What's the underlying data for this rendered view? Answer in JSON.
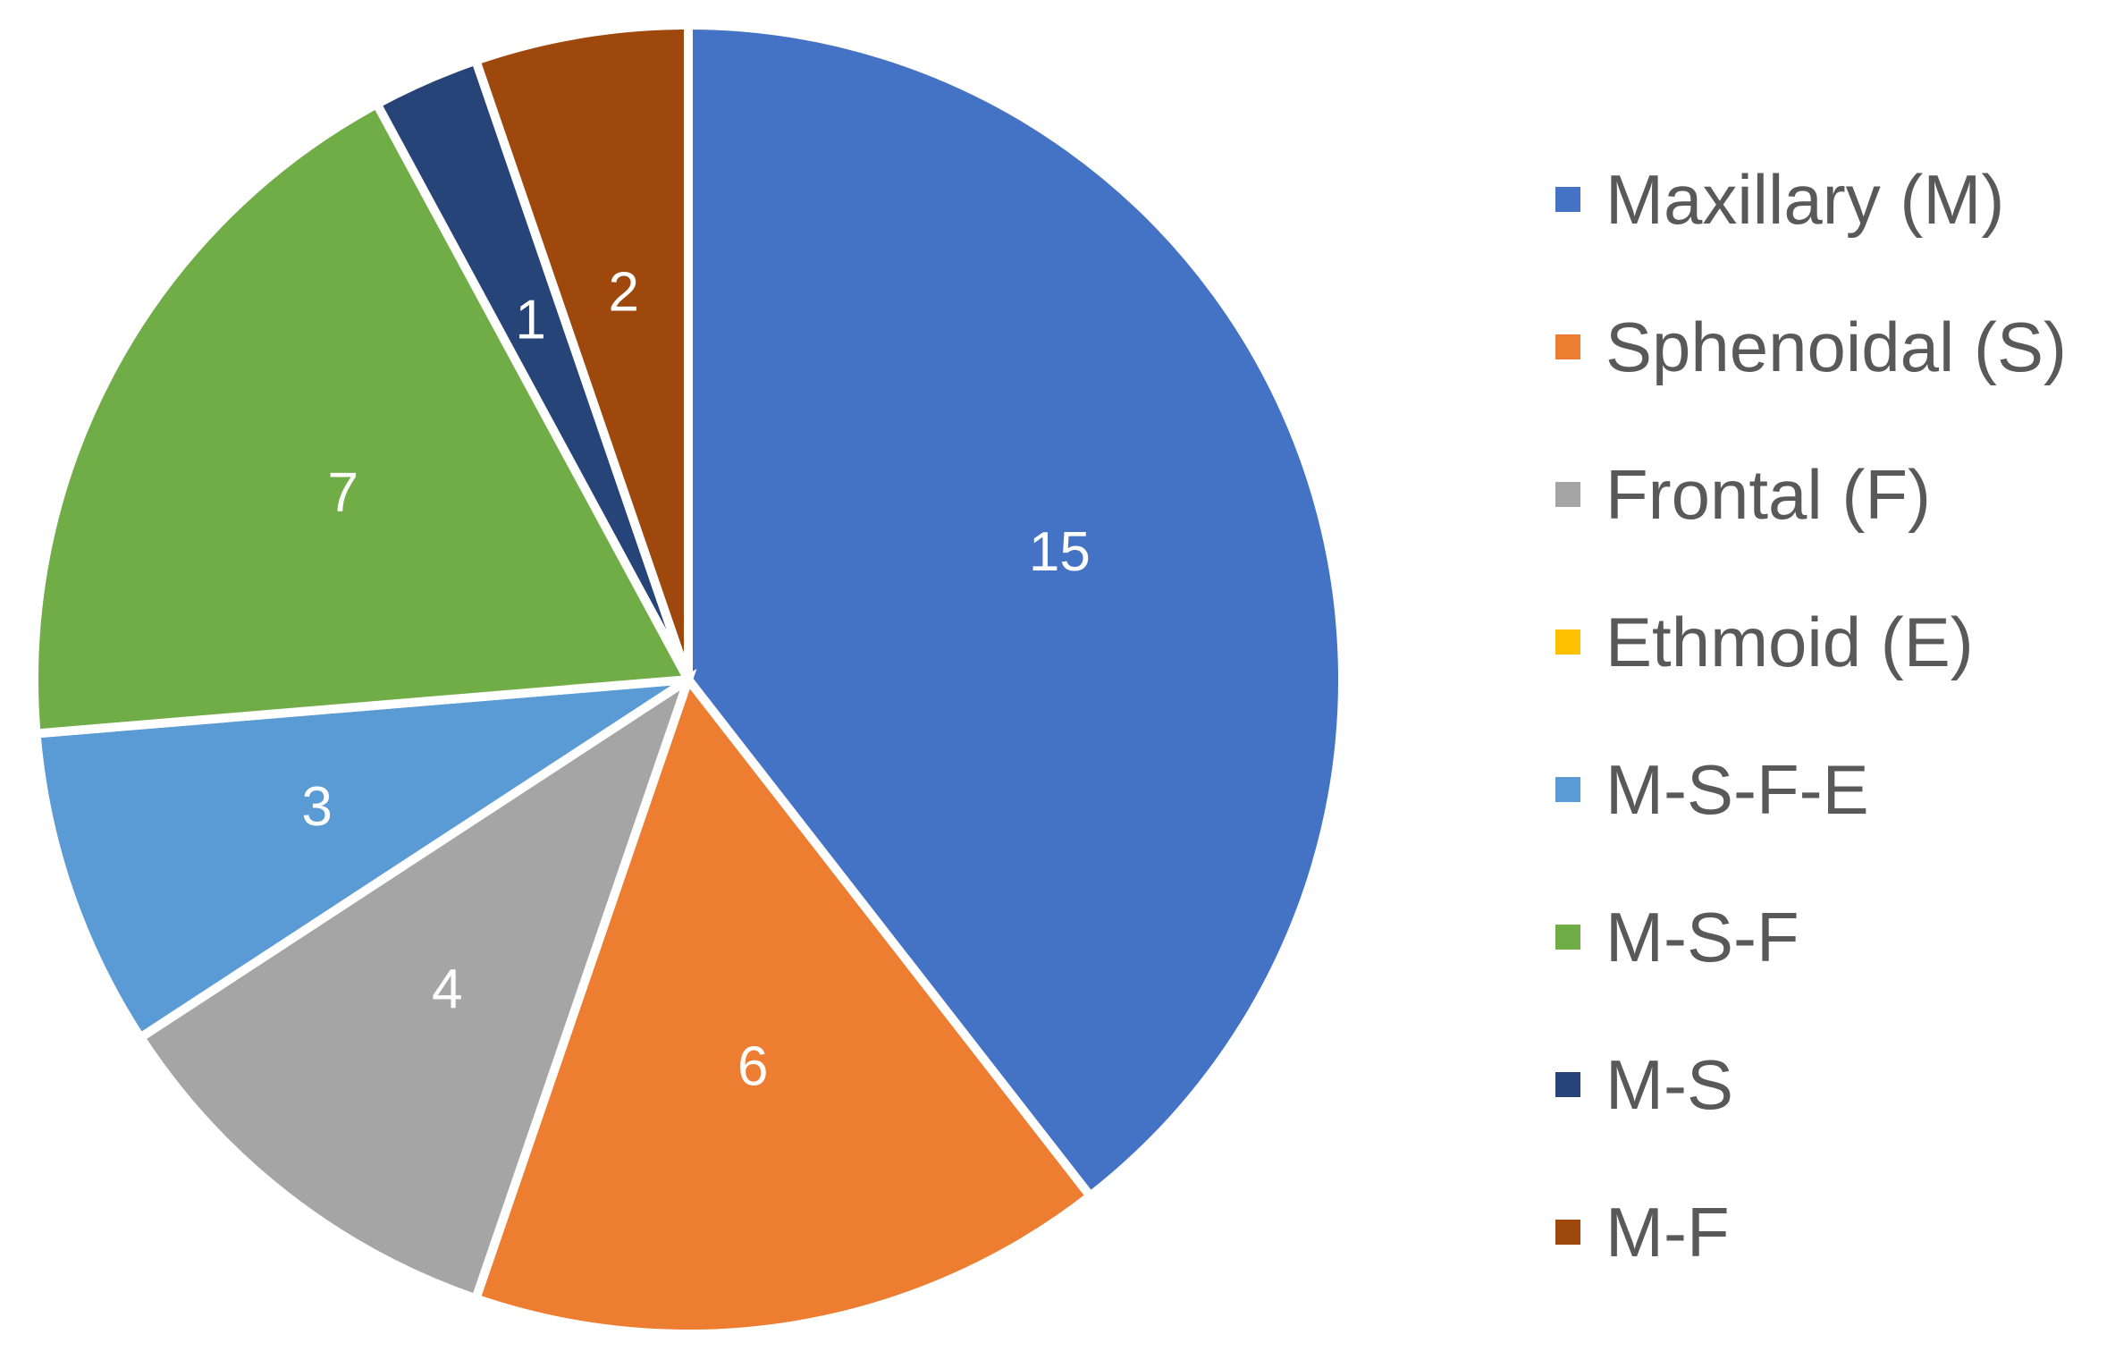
{
  "chart_data": {
    "type": "pie",
    "title": "",
    "legend_position": "right",
    "start_angle_deg": 0,
    "direction": "clockwise",
    "categories": [
      "Maxillary (M)",
      "Sphenoidal (S)",
      "Frontal (F)",
      "Ethmoid (E)",
      "M-S-F-E",
      "M-S-F",
      "M-S",
      "M-F"
    ],
    "values": [
      15,
      6,
      4,
      0,
      3,
      7,
      1,
      2
    ],
    "data_labels": [
      "15",
      "6",
      "4",
      "",
      "3",
      "7",
      "1",
      "2"
    ],
    "colors": [
      "#4472C4",
      "#ED7D31",
      "#A5A5A5",
      "#FFC000",
      "#5B9BD5",
      "#70AD47",
      "#264478",
      "#9E480E"
    ]
  }
}
